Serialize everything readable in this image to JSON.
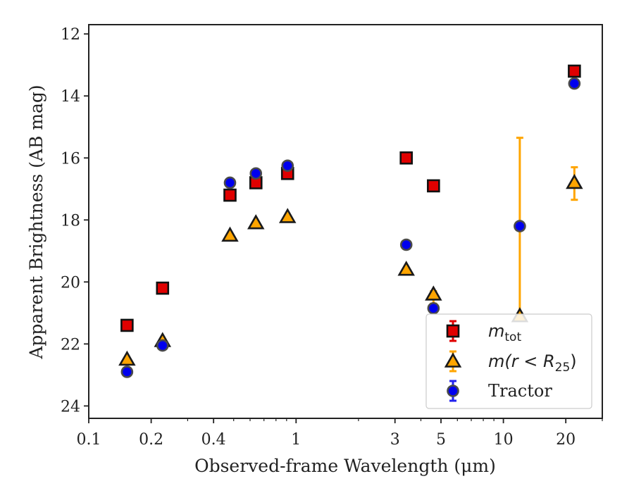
{
  "chart_data": {
    "type": "scatter",
    "title": "",
    "xlabel": "Observed-frame Wavelength (μm)",
    "ylabel": "Apparent Brightness (AB mag)",
    "xscale": "log",
    "xlim": [
      0.1,
      30
    ],
    "ylim": [
      24.4,
      11.7
    ],
    "y_inverted": true,
    "x_ticks": [
      0.1,
      0.2,
      0.4,
      1,
      3,
      5,
      10,
      20
    ],
    "x_tick_labels": [
      "0.1",
      "0.2",
      "0.4",
      "1",
      "3",
      "5",
      "10",
      "20"
    ],
    "y_ticks": [
      12,
      14,
      16,
      18,
      20,
      22,
      24
    ],
    "y_tick_labels": [
      "12",
      "14",
      "16",
      "18",
      "20",
      "22",
      "24"
    ],
    "grid": false,
    "legend_position": "bottom-right",
    "series": [
      {
        "name": "m_tot",
        "legend_main": "m",
        "legend_sub": "tot",
        "marker": "square",
        "fill": "#e00000",
        "errcolor": "#e00000",
        "points": [
          {
            "x": 0.153,
            "y": 21.4
          },
          {
            "x": 0.227,
            "y": 20.2
          },
          {
            "x": 0.48,
            "y": 17.2
          },
          {
            "x": 0.64,
            "y": 16.8
          },
          {
            "x": 0.91,
            "y": 16.5
          },
          {
            "x": 3.4,
            "y": 16.0
          },
          {
            "x": 4.6,
            "y": 16.9
          },
          {
            "x": 22.0,
            "y": 13.2
          }
        ]
      },
      {
        "name": "m(r < R_25)",
        "legend_main": "m(r < R",
        "legend_sub": "25",
        "legend_tail": ")",
        "marker": "triangle",
        "fill": "#ffa500",
        "errcolor": "#ffa500",
        "points": [
          {
            "x": 0.153,
            "y": 22.5
          },
          {
            "x": 0.227,
            "y": 21.9
          },
          {
            "x": 0.48,
            "y": 18.5
          },
          {
            "x": 0.64,
            "y": 18.1
          },
          {
            "x": 0.91,
            "y": 17.9
          },
          {
            "x": 3.4,
            "y": 19.6
          },
          {
            "x": 4.6,
            "y": 20.4,
            "err_lo": 20.3,
            "err_hi": 20.7
          },
          {
            "x": 12.0,
            "y": 21.1,
            "err_lo": 15.35,
            "err_hi": 21.1
          },
          {
            "x": 22.0,
            "y": 16.8,
            "err_lo": 16.3,
            "err_hi": 17.35
          }
        ]
      },
      {
        "name": "Tractor",
        "marker": "circle",
        "fill": "#0000ee",
        "errcolor": "#2222ee",
        "points": [
          {
            "x": 0.153,
            "y": 22.9
          },
          {
            "x": 0.227,
            "y": 22.05
          },
          {
            "x": 0.48,
            "y": 16.8
          },
          {
            "x": 0.64,
            "y": 16.5
          },
          {
            "x": 0.91,
            "y": 16.25
          },
          {
            "x": 3.4,
            "y": 18.8
          },
          {
            "x": 4.6,
            "y": 20.85
          },
          {
            "x": 12.0,
            "y": 18.2
          },
          {
            "x": 22.0,
            "y": 13.6
          }
        ]
      }
    ]
  }
}
